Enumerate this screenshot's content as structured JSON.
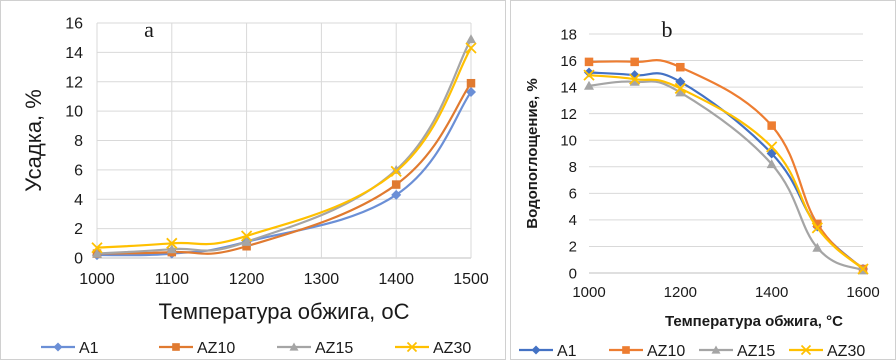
{
  "chart_data": [
    {
      "type": "line",
      "panel_label": "a",
      "xlabel": "Температура обжига, оС",
      "ylabel": "Усадка, %",
      "xlim": [
        1000,
        1500
      ],
      "ylim": [
        0,
        16
      ],
      "xticks": [
        1000,
        1100,
        1200,
        1300,
        1400,
        1500
      ],
      "yticks": [
        0,
        2,
        4,
        6,
        8,
        10,
        12,
        14,
        16
      ],
      "grid": true,
      "legend_position": "bottom",
      "series": [
        {
          "name": "A1",
          "color": "#6b8fd6",
          "marker": "diamond",
          "x": [
            1000,
            1100,
            1200,
            1400,
            1500
          ],
          "y": [
            0.2,
            0.3,
            1.1,
            4.3,
            11.3
          ]
        },
        {
          "name": "AZ10",
          "color": "#e07a30",
          "marker": "square",
          "x": [
            1000,
            1100,
            1200,
            1400,
            1500
          ],
          "y": [
            0.3,
            0.4,
            0.8,
            5.0,
            11.9
          ]
        },
        {
          "name": "AZ15",
          "color": "#a5a5a5",
          "marker": "triangle",
          "x": [
            1000,
            1100,
            1200,
            1400,
            1500
          ],
          "y": [
            0.3,
            0.6,
            1.1,
            6.0,
            14.9
          ]
        },
        {
          "name": "AZ30",
          "color": "#ffc000",
          "marker": "x",
          "x": [
            1000,
            1100,
            1200,
            1400,
            1500
          ],
          "y": [
            0.7,
            1.0,
            1.5,
            5.9,
            14.3
          ]
        }
      ]
    },
    {
      "type": "line",
      "panel_label": "b",
      "xlabel": "Температура обжига, °С",
      "ylabel": "Водопоглощение, %",
      "xlim": [
        1000,
        1600
      ],
      "ylim": [
        0,
        18
      ],
      "xticks": [
        1000,
        1200,
        1400,
        1600
      ],
      "yticks": [
        0,
        2,
        4,
        6,
        8,
        10,
        12,
        14,
        16,
        18
      ],
      "grid": true,
      "legend_position": "bottom",
      "series": [
        {
          "name": "A1",
          "color": "#4472c4",
          "marker": "diamond",
          "x": [
            1000,
            1100,
            1200,
            1400,
            1500,
            1600
          ],
          "y": [
            15.1,
            14.9,
            14.4,
            9.0,
            3.5,
            0.3
          ]
        },
        {
          "name": "AZ10",
          "color": "#ed7d31",
          "marker": "square",
          "x": [
            1000,
            1100,
            1200,
            1400,
            1500,
            1600
          ],
          "y": [
            15.9,
            15.9,
            15.5,
            11.1,
            3.7,
            0.3
          ]
        },
        {
          "name": "AZ15",
          "color": "#a5a5a5",
          "marker": "triangle",
          "x": [
            1000,
            1100,
            1200,
            1400,
            1500,
            1600
          ],
          "y": [
            14.1,
            14.4,
            13.6,
            8.2,
            1.9,
            0.2
          ]
        },
        {
          "name": "AZ30",
          "color": "#ffc000",
          "marker": "x",
          "x": [
            1000,
            1100,
            1200,
            1400,
            1500,
            1600
          ],
          "y": [
            14.9,
            14.6,
            13.9,
            9.5,
            3.4,
            0.3
          ]
        }
      ]
    }
  ]
}
